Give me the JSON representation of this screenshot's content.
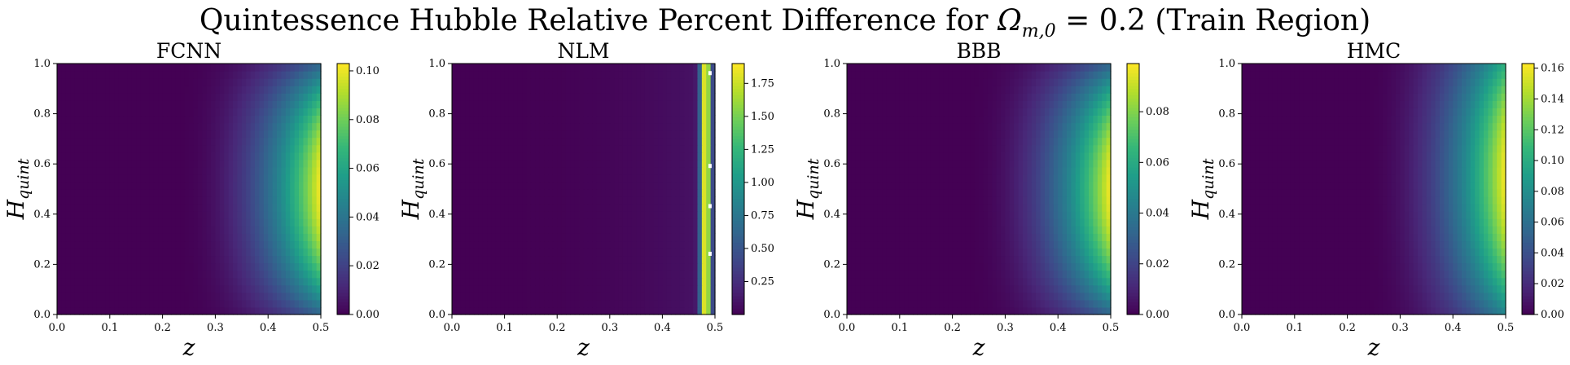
{
  "title": {
    "prefix": "Quintessence Hubble Relative Percent Difference for ",
    "omega": "Ω",
    "omega_sub": "m,0",
    "suffix": " = 0.2 (Train Region)"
  },
  "colormap": "viridis",
  "colormap_stops": [
    "#440154",
    "#482878",
    "#3e4989",
    "#31688e",
    "#26828e",
    "#1f9e89",
    "#35b779",
    "#6ece58",
    "#b5de2b",
    "#fde725"
  ],
  "chart_data": [
    {
      "type": "heatmap",
      "title": "FCNN",
      "xlabel": "z",
      "ylabel": "H",
      "ylabel_sub": "quint",
      "xlim": [
        0,
        0.5
      ],
      "ylim": [
        0,
        1
      ],
      "x_ticks": [
        "0.0",
        "0.1",
        "0.2",
        "0.3",
        "0.4",
        "0.5"
      ],
      "y_ticks": [
        "0.0",
        "0.2",
        "0.4",
        "0.6",
        "0.8",
        "1.0"
      ],
      "colorbar_range": [
        0,
        0.103
      ],
      "colorbar_ticks": [
        "0.00",
        "0.02",
        "0.04",
        "0.06",
        "0.08",
        "0.10"
      ],
      "colorbar_tick_values": [
        0,
        0.02,
        0.04,
        0.06,
        0.08,
        0.1
      ],
      "peak_value": 0.103,
      "peak_z": 0.5,
      "peak_H": 0.5
    },
    {
      "type": "heatmap",
      "title": "NLM",
      "xlabel": "z",
      "ylabel": "H",
      "ylabel_sub": "quint",
      "xlim": [
        0,
        0.5
      ],
      "ylim": [
        0,
        1
      ],
      "x_ticks": [
        "0.0",
        "0.1",
        "0.2",
        "0.3",
        "0.4",
        "0.5"
      ],
      "y_ticks": [
        "0.0",
        "0.2",
        "0.4",
        "0.6",
        "0.8",
        "1.0"
      ],
      "colorbar_range": [
        0,
        1.9
      ],
      "colorbar_ticks": [
        "0.25",
        "0.50",
        "0.75",
        "1.00",
        "1.25",
        "1.50",
        "1.75"
      ],
      "colorbar_tick_values": [
        0.25,
        0.5,
        0.75,
        1.0,
        1.25,
        1.5,
        1.75
      ],
      "peak_value": 1.9,
      "peak_z": 0.48,
      "peak_H": 0.5
    },
    {
      "type": "heatmap",
      "title": "BBB",
      "xlabel": "z",
      "ylabel": "H",
      "ylabel_sub": "quint",
      "xlim": [
        0,
        0.5
      ],
      "ylim": [
        0,
        1
      ],
      "x_ticks": [
        "0.0",
        "0.1",
        "0.2",
        "0.3",
        "0.4",
        "0.5"
      ],
      "y_ticks": [
        "0.0",
        "0.2",
        "0.4",
        "0.6",
        "0.8",
        "1.0"
      ],
      "colorbar_range": [
        0,
        0.099
      ],
      "colorbar_ticks": [
        "0.00",
        "0.02",
        "0.04",
        "0.06",
        "0.08"
      ],
      "colorbar_tick_values": [
        0,
        0.02,
        0.04,
        0.06,
        0.08
      ],
      "peak_value": 0.099,
      "peak_z": 0.5,
      "peak_H": 0.5
    },
    {
      "type": "heatmap",
      "title": "HMC",
      "xlabel": "z",
      "ylabel": "H",
      "ylabel_sub": "quint",
      "xlim": [
        0,
        0.5
      ],
      "ylim": [
        0,
        1
      ],
      "x_ticks": [
        "0.0",
        "0.1",
        "0.2",
        "0.3",
        "0.4",
        "0.5"
      ],
      "y_ticks": [
        "0.0",
        "0.2",
        "0.4",
        "0.6",
        "0.8",
        "1.0"
      ],
      "colorbar_range": [
        0,
        0.163
      ],
      "colorbar_ticks": [
        "0.00",
        "0.02",
        "0.04",
        "0.06",
        "0.08",
        "0.10",
        "0.12",
        "0.14",
        "0.16"
      ],
      "colorbar_tick_values": [
        0,
        0.02,
        0.04,
        0.06,
        0.08,
        0.1,
        0.12,
        0.14,
        0.16
      ],
      "peak_value": 0.163,
      "peak_z": 0.5,
      "peak_H": 0.55
    }
  ]
}
